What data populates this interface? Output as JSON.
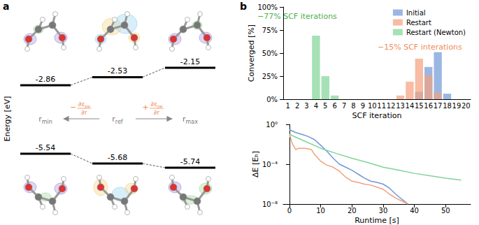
{
  "panels": [
    "a",
    "b"
  ],
  "diagram": {
    "y_label": "Energy [eV]",
    "columns": [
      {
        "symbol": "r",
        "subscript": "min",
        "upper": -2.86,
        "lower": -5.54
      },
      {
        "symbol": "r",
        "subscript": "ref",
        "upper": -2.53,
        "lower": -5.68
      },
      {
        "symbol": "r",
        "subscript": "max",
        "upper": -2.15,
        "lower": -5.74
      }
    ],
    "arrows": [
      {
        "from": 1,
        "to": 0,
        "sign": "−",
        "numerator": "∂ε",
        "numerator_subscript": "pe",
        "denominator": "∂r",
        "color": "#f08c5a"
      },
      {
        "from": 1,
        "to": 2,
        "sign": "+",
        "numerator": "∂ε",
        "numerator_subscript": "pe",
        "denominator": "∂r",
        "color": "#f08c5a"
      }
    ]
  },
  "chart_data": [
    {
      "type": "bar",
      "x_label": "SCF iteration",
      "y_label": "Converged [%]",
      "categories": [
        "1",
        "2",
        "3",
        "4",
        "5",
        "6",
        "7",
        "8",
        "9",
        "10",
        "11",
        "12",
        "13",
        "14",
        "15",
        "16",
        "17",
        "18",
        "19",
        "20"
      ],
      "series": [
        {
          "name": "Initial",
          "color": "#6f98d8",
          "values": [
            0,
            0,
            0,
            0,
            0,
            0,
            0,
            0,
            0,
            0,
            0,
            0,
            0,
            0,
            8,
            35,
            51,
            6,
            0,
            0
          ]
        },
        {
          "name": "Restart",
          "color": "#f4a07c",
          "values": [
            0,
            0,
            0,
            0,
            0,
            0,
            0,
            0,
            0,
            0,
            0,
            0,
            4,
            19,
            44,
            26,
            7,
            0,
            0,
            0
          ]
        },
        {
          "name": "Restart (Newton)",
          "color": "#7fd496",
          "values": [
            0,
            0,
            0,
            69,
            25,
            4,
            0,
            0,
            0,
            0,
            0,
            0,
            0,
            0,
            0,
            0,
            0,
            0,
            0,
            0
          ]
        }
      ],
      "ylim": [
        0,
        100
      ],
      "yticks": [
        {
          "value": 0,
          "label": "0%"
        },
        {
          "value": 25,
          "label": "25%"
        },
        {
          "value": 50,
          "label": "50%"
        },
        {
          "value": 75,
          "label": "75%"
        },
        {
          "value": 100,
          "label": "100%"
        }
      ],
      "legend": "upper right",
      "grid": false,
      "annotations": [
        {
          "text": "−77% SCF iterations",
          "color": "#4caf50"
        },
        {
          "text": "−15% SCF interations",
          "color": "#f08c5a"
        }
      ]
    },
    {
      "type": "line",
      "x_label": "Runtime [s]",
      "y_label": "ΔE [Eₕ]",
      "log": "y",
      "series": [
        {
          "name": "Initial",
          "color": "#6f98d8",
          "x": [
            0,
            2,
            4,
            6,
            8,
            10,
            12,
            14,
            16,
            18,
            20,
            22,
            24,
            26,
            28,
            30,
            32,
            34,
            36,
            38
          ],
          "values": [
            0.3,
            0.15,
            0.1,
            0.06,
            0.03,
            0.008,
            0.002,
            0.0004,
            0.0001,
            5e-05,
            2.5e-05,
            1e-05,
            4e-06,
            2e-06,
            1.5e-06,
            1e-06,
            4e-07,
            1e-07,
            3e-08,
            1e-08
          ]
        },
        {
          "name": "Restart",
          "color": "#f4a07c",
          "x": [
            0,
            1,
            2,
            3,
            5,
            7,
            8,
            10,
            12,
            14,
            16,
            18,
            20,
            22,
            24,
            26,
            28,
            30,
            32,
            34,
            36,
            38
          ],
          "values": [
            0.1,
            0.01,
            0.003,
            0.004,
            0.004,
            0.003,
            0.001,
            0.0002,
            8e-05,
            5e-05,
            2e-05,
            5e-06,
            2e-06,
            1.5e-06,
            1e-06,
            8e-07,
            5e-07,
            3e-07,
            1e-07,
            4e-08,
            2e-08,
            1e-08
          ]
        },
        {
          "name": "Restart (Newton)",
          "color": "#7fd496",
          "x": [
            0,
            5,
            10,
            15,
            20,
            25,
            30,
            35,
            40,
            45,
            50,
            55
          ],
          "values": [
            0.1,
            0.02,
            0.004,
            0.0012,
            0.0004,
            0.00015,
            5e-05,
            2.5e-05,
            1.2e-05,
            7e-06,
            4e-06,
            2.5e-06
          ]
        }
      ],
      "xlim": [
        -2,
        58
      ],
      "xticks": [
        0,
        10,
        20,
        30,
        40,
        50
      ],
      "ylim": [
        1e-08,
        1
      ],
      "yticks": [
        {
          "value": 1,
          "label": "10⁰"
        },
        {
          "value": 0.0001,
          "label": "10⁻⁴"
        },
        {
          "value": 1e-08,
          "label": "10⁻⁸"
        }
      ],
      "grid": false
    }
  ]
}
